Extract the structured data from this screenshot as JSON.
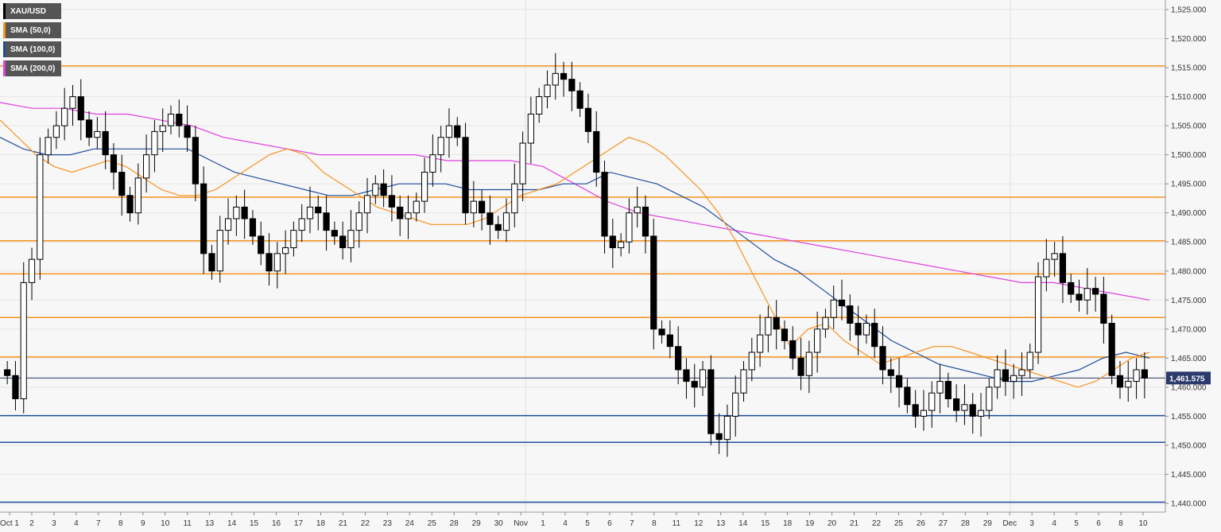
{
  "chart_data": {
    "type": "candlestick",
    "instrument": "XAU/USD",
    "legend": [
      {
        "label": "XAU/USD",
        "color": "#000000"
      },
      {
        "label": "SMA (50,0)",
        "color": "#f7931e"
      },
      {
        "label": "SMA (100,0)",
        "color": "#1f4e9c"
      },
      {
        "label": "SMA (200,0)",
        "color": "#e040e0"
      }
    ],
    "ylim": [
      1440,
      1525
    ],
    "y_ticks": [
      "1,440.000",
      "1,445.000",
      "1,450.000",
      "1,455.000",
      "1,460.000",
      "1,465.000",
      "1,470.000",
      "1,475.000",
      "1,480.000",
      "1,485.000",
      "1,490.000",
      "1,495.000",
      "1,500.000",
      "1,505.000",
      "1,510.000",
      "1,515.000",
      "1,520.000",
      "1,525.000"
    ],
    "x_labels": [
      "Oct 1",
      "2",
      "3",
      "4",
      "7",
      "8",
      "9",
      "10",
      "11",
      "13",
      "14",
      "15",
      "16",
      "17",
      "18",
      "21",
      "22",
      "23",
      "24",
      "25",
      "28",
      "29",
      "30",
      "Nov",
      "1",
      "4",
      "5",
      "6",
      "7",
      "8",
      "11",
      "12",
      "13",
      "14",
      "15",
      "18",
      "19",
      "20",
      "21",
      "22",
      "25",
      "26",
      "27",
      "28",
      "29",
      "Dec",
      "3",
      "4",
      "5",
      "6",
      "8",
      "10"
    ],
    "last_price_label": "1,461.575",
    "last_price": 1461.575,
    "resistance_levels": [
      1515.3,
      1492.7,
      1485.2,
      1479.5,
      1472.0,
      1465.2
    ],
    "support_levels": [
      1455.1,
      1450.5,
      1440.2
    ],
    "closes": [
      1462,
      1458,
      1478,
      1482,
      1500,
      1503,
      1505,
      1508,
      1510,
      1506,
      1503,
      1504,
      1500,
      1497,
      1493,
      1490,
      1496,
      1500,
      1504,
      1505,
      1507,
      1505,
      1503,
      1495,
      1483,
      1480,
      1487,
      1489,
      1491,
      1489,
      1486,
      1483,
      1480,
      1483,
      1484,
      1487,
      1489,
      1491,
      1490,
      1487,
      1486,
      1484,
      1487,
      1490,
      1493,
      1495,
      1493,
      1491,
      1489,
      1490,
      1492,
      1497,
      1500,
      1503,
      1505,
      1503,
      1490,
      1492,
      1490,
      1488,
      1487,
      1490,
      1495,
      1502,
      1507,
      1510,
      1512,
      1514,
      1513,
      1511,
      1508,
      1504,
      1497,
      1486,
      1484,
      1485,
      1490,
      1491,
      1486,
      1470,
      1469,
      1467,
      1463,
      1461,
      1460,
      1463,
      1452,
      1451,
      1455,
      1459,
      1463,
      1466,
      1469,
      1472,
      1470,
      1468,
      1465,
      1462,
      1466,
      1470,
      1472,
      1475,
      1474,
      1471,
      1469,
      1471,
      1467,
      1463,
      1462,
      1460,
      1457,
      1455,
      1456,
      1459,
      1461,
      1458,
      1456,
      1457,
      1455,
      1456,
      1460,
      1463,
      1461,
      1462,
      1463,
      1466,
      1479,
      1482,
      1483,
      1478,
      1476,
      1475,
      1477,
      1476,
      1471,
      1462,
      1460,
      1461,
      1463,
      1461.575
    ],
    "sma50": [
      1506,
      1503,
      1500,
      1498,
      1497,
      1498,
      1499,
      1498,
      1496,
      1494,
      1493,
      1493,
      1494,
      1496,
      1498,
      1500,
      1501,
      1500,
      1497,
      1495,
      1493,
      1491,
      1490,
      1489,
      1488,
      1488,
      1488,
      1489,
      1491,
      1493,
      1494,
      1495,
      1497,
      1499,
      1501,
      1503,
      1502,
      1500,
      1497,
      1494,
      1490,
      1485,
      1479,
      1473,
      1467,
      1470,
      1471,
      1468,
      1466,
      1464,
      1465,
      1466,
      1467,
      1467,
      1466,
      1465,
      1464,
      1463,
      1462,
      1461,
      1460,
      1461,
      1463,
      1465,
      1466
    ],
    "sma100": [
      1503,
      1501,
      1500,
      1500,
      1501,
      1501,
      1501,
      1501,
      1501,
      1499,
      1497,
      1496,
      1495,
      1494,
      1493,
      1493,
      1494,
      1495,
      1495,
      1495,
      1494,
      1494,
      1494,
      1494,
      1495,
      1495,
      1497,
      1496,
      1495,
      1493,
      1491,
      1488,
      1485,
      1482,
      1480,
      1477,
      1474,
      1471,
      1468,
      1466,
      1464,
      1463,
      1462,
      1461,
      1461,
      1462,
      1463,
      1465,
      1466,
      1465
    ],
    "sma200": [
      1509,
      1508,
      1508,
      1507,
      1507,
      1506,
      1505,
      1503,
      1502,
      1501,
      1500,
      1500,
      1500,
      1500,
      1499,
      1499,
      1499,
      1498,
      1495,
      1492,
      1490,
      1489,
      1488,
      1487,
      1486,
      1485,
      1484,
      1483,
      1482,
      1481,
      1480,
      1479,
      1478,
      1478,
      1477,
      1476,
      1475
    ]
  }
}
